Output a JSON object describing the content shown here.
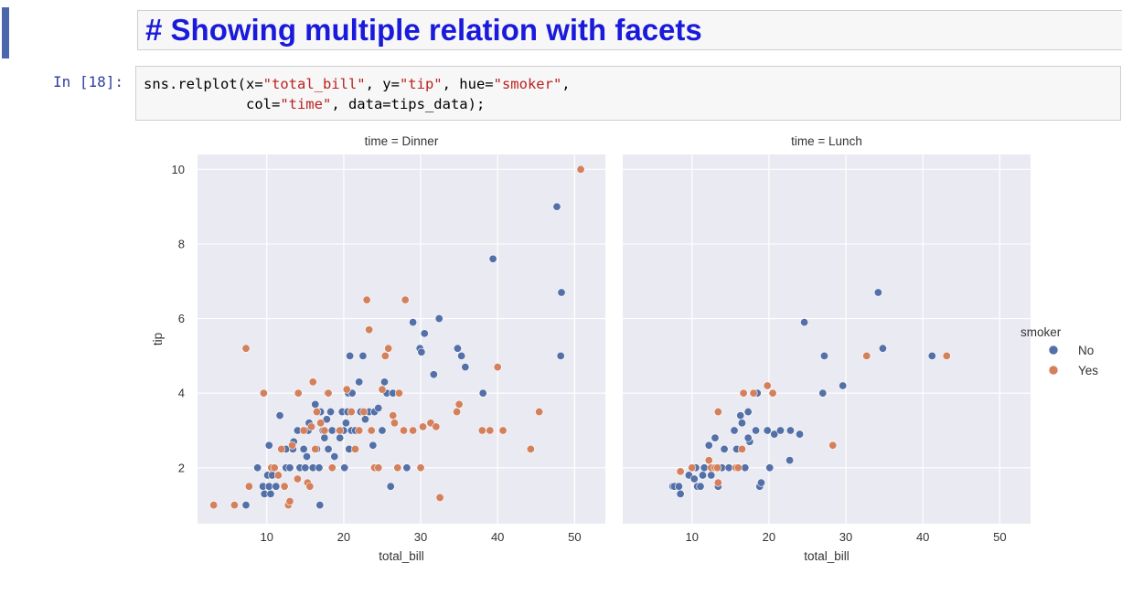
{
  "markdown": {
    "title": "# Showing multiple relation with facets"
  },
  "cell": {
    "prompt": "In [18]:",
    "code": {
      "l1a": "sns.relplot(x=",
      "s1": "\"total_bill\"",
      "l1b": ", y=",
      "s2": "\"tip\"",
      "l1c": ", hue=",
      "s3": "\"smoker\"",
      "l1d": ",",
      "l2a": "            col=",
      "s4": "\"time\"",
      "l2b": ", data=tips_data);"
    }
  },
  "chart_data": {
    "type": "scatter",
    "xlabel": "total_bill",
    "ylabel": "tip",
    "xlim": [
      1,
      54
    ],
    "ylim": [
      0.5,
      10.4
    ],
    "xticks": [
      10,
      20,
      30,
      40,
      50
    ],
    "yticks": [
      2,
      4,
      6,
      8,
      10
    ],
    "grid": true,
    "legend": {
      "title": "smoker",
      "placement": "right",
      "entries": [
        {
          "label": "No",
          "color": "#5470a8"
        },
        {
          "label": "Yes",
          "color": "#d4805c"
        }
      ]
    },
    "facets": [
      {
        "title": "time = Dinner",
        "series": [
          {
            "name": "No",
            "color": "#5470a8",
            "points": [
              [
                7.3,
                1.0
              ],
              [
                8.8,
                2.0
              ],
              [
                9.5,
                1.5
              ],
              [
                9.7,
                1.3
              ],
              [
                10.1,
                1.8
              ],
              [
                10.3,
                2.6
              ],
              [
                10.3,
                1.5
              ],
              [
                10.5,
                1.3
              ],
              [
                10.7,
                1.8
              ],
              [
                11.2,
                1.5
              ],
              [
                11.7,
                3.4
              ],
              [
                12.5,
                2.5
              ],
              [
                12.5,
                2.0
              ],
              [
                13.0,
                2.0
              ],
              [
                13.4,
                2.5
              ],
              [
                13.5,
                2.7
              ],
              [
                14.0,
                3.0
              ],
              [
                14.3,
                2.0
              ],
              [
                14.8,
                2.5
              ],
              [
                15.0,
                2.0
              ],
              [
                15.2,
                2.3
              ],
              [
                15.4,
                3.0
              ],
              [
                15.5,
                3.2
              ],
              [
                16.0,
                2.0
              ],
              [
                16.3,
                3.7
              ],
              [
                16.5,
                2.5
              ],
              [
                16.8,
                2.0
              ],
              [
                16.9,
                1.0
              ],
              [
                17.0,
                3.5
              ],
              [
                17.3,
                3.0
              ],
              [
                17.5,
                2.8
              ],
              [
                17.8,
                3.3
              ],
              [
                17.9,
                4.0
              ],
              [
                18.0,
                2.5
              ],
              [
                18.3,
                3.5
              ],
              [
                18.5,
                3.0
              ],
              [
                18.8,
                2.3
              ],
              [
                19.4,
                3.0
              ],
              [
                19.5,
                2.8
              ],
              [
                19.8,
                3.5
              ],
              [
                20.0,
                3.0
              ],
              [
                20.1,
                2.0
              ],
              [
                20.3,
                3.2
              ],
              [
                20.5,
                3.5
              ],
              [
                20.6,
                4.0
              ],
              [
                20.7,
                2.5
              ],
              [
                20.8,
                5.0
              ],
              [
                21.0,
                3.0
              ],
              [
                21.1,
                4.0
              ],
              [
                21.5,
                3.0
              ],
              [
                22.0,
                4.3
              ],
              [
                22.2,
                3.5
              ],
              [
                22.5,
                5.0
              ],
              [
                22.8,
                3.3
              ],
              [
                23.3,
                3.5
              ],
              [
                23.8,
                2.6
              ],
              [
                24.0,
                3.5
              ],
              [
                24.3,
                2.0
              ],
              [
                24.5,
                3.6
              ],
              [
                25.0,
                3.0
              ],
              [
                25.3,
                4.3
              ],
              [
                25.6,
                4.0
              ],
              [
                26.1,
                1.5
              ],
              [
                26.4,
                4.0
              ],
              [
                28.2,
                2.0
              ],
              [
                29.0,
                5.9
              ],
              [
                29.9,
                5.2
              ],
              [
                30.1,
                5.1
              ],
              [
                30.5,
                5.6
              ],
              [
                31.7,
                4.5
              ],
              [
                32.4,
                6.0
              ],
              [
                34.8,
                5.2
              ],
              [
                35.3,
                5.0
              ],
              [
                35.8,
                4.7
              ],
              [
                38.1,
                4.0
              ],
              [
                39.4,
                7.6
              ],
              [
                47.7,
                9.0
              ],
              [
                48.2,
                5.0
              ],
              [
                48.3,
                6.7
              ]
            ]
          },
          {
            "name": "Yes",
            "color": "#d4805c",
            "points": [
              [
                3.1,
                1.0
              ],
              [
                5.8,
                1.0
              ],
              [
                7.3,
                5.2
              ],
              [
                7.7,
                1.5
              ],
              [
                9.6,
                4.0
              ],
              [
                10.6,
                2.0
              ],
              [
                11.0,
                2.0
              ],
              [
                11.5,
                1.8
              ],
              [
                11.9,
                2.5
              ],
              [
                12.3,
                1.5
              ],
              [
                12.8,
                1.0
              ],
              [
                13.0,
                1.1
              ],
              [
                13.3,
                2.6
              ],
              [
                14.0,
                1.7
              ],
              [
                14.1,
                4.0
              ],
              [
                14.8,
                3.0
              ],
              [
                15.3,
                1.6
              ],
              [
                15.6,
                1.5
              ],
              [
                15.8,
                3.1
              ],
              [
                16.0,
                4.3
              ],
              [
                16.3,
                2.5
              ],
              [
                16.5,
                3.5
              ],
              [
                17.0,
                3.2
              ],
              [
                17.5,
                3.0
              ],
              [
                18.0,
                4.0
              ],
              [
                18.5,
                2.0
              ],
              [
                19.5,
                3.0
              ],
              [
                20.4,
                4.1
              ],
              [
                21.0,
                3.5
              ],
              [
                21.5,
                2.5
              ],
              [
                22.0,
                3.0
              ],
              [
                22.6,
                3.5
              ],
              [
                23.0,
                6.5
              ],
              [
                23.3,
                5.7
              ],
              [
                23.6,
                3.0
              ],
              [
                24.0,
                2.0
              ],
              [
                24.5,
                2.0
              ],
              [
                25.0,
                4.1
              ],
              [
                25.4,
                5.0
              ],
              [
                25.8,
                5.2
              ],
              [
                26.4,
                3.4
              ],
              [
                26.6,
                3.2
              ],
              [
                27.0,
                2.0
              ],
              [
                27.2,
                4.0
              ],
              [
                27.8,
                3.0
              ],
              [
                28.0,
                6.5
              ],
              [
                29.0,
                3.0
              ],
              [
                30.0,
                2.0
              ],
              [
                30.3,
                3.1
              ],
              [
                31.3,
                3.2
              ],
              [
                32.0,
                3.1
              ],
              [
                32.5,
                1.2
              ],
              [
                34.7,
                3.5
              ],
              [
                35.0,
                3.7
              ],
              [
                38.0,
                3.0
              ],
              [
                39.0,
                3.0
              ],
              [
                40.0,
                4.7
              ],
              [
                40.7,
                3.0
              ],
              [
                44.3,
                2.5
              ],
              [
                45.4,
                3.5
              ],
              [
                50.8,
                10.0
              ]
            ]
          }
        ]
      },
      {
        "title": "time = Lunch",
        "series": [
          {
            "name": "No",
            "color": "#5470a8",
            "points": [
              [
                7.5,
                1.5
              ],
              [
                7.7,
                1.5
              ],
              [
                8.3,
                1.5
              ],
              [
                8.5,
                1.3
              ],
              [
                9.6,
                1.8
              ],
              [
                10.3,
                1.7
              ],
              [
                10.5,
                2.0
              ],
              [
                10.7,
                1.5
              ],
              [
                11.1,
                1.5
              ],
              [
                11.4,
                1.8
              ],
              [
                11.6,
                2.0
              ],
              [
                12.2,
                2.6
              ],
              [
                12.5,
                1.8
              ],
              [
                12.7,
                2.0
              ],
              [
                13.0,
                2.8
              ],
              [
                13.4,
                1.5
              ],
              [
                13.9,
                2.0
              ],
              [
                14.2,
                2.5
              ],
              [
                14.8,
                2.0
              ],
              [
                15.5,
                3.0
              ],
              [
                15.8,
                2.5
              ],
              [
                16.3,
                3.4
              ],
              [
                16.5,
                3.2
              ],
              [
                16.9,
                2.0
              ],
              [
                17.3,
                3.5
              ],
              [
                17.5,
                2.7
              ],
              [
                18.3,
                3.0
              ],
              [
                18.8,
                1.5
              ],
              [
                18.5,
                4.0
              ],
              [
                19.0,
                1.6
              ],
              [
                19.8,
                3.0
              ],
              [
                20.1,
                2.0
              ],
              [
                20.7,
                2.9
              ],
              [
                21.5,
                3.0
              ],
              [
                22.7,
                2.2
              ],
              [
                22.8,
                3.0
              ],
              [
                24.0,
                2.9
              ],
              [
                24.6,
                5.9
              ],
              [
                27.0,
                4.0
              ],
              [
                27.2,
                5.0
              ],
              [
                29.6,
                4.2
              ],
              [
                34.2,
                6.7
              ],
              [
                34.8,
                5.2
              ],
              [
                41.2,
                5.0
              ],
              [
                17.3,
                2.8
              ]
            ]
          },
          {
            "name": "Yes",
            "color": "#d4805c",
            "points": [
              [
                8.5,
                1.9
              ],
              [
                10.0,
                2.0
              ],
              [
                12.2,
                2.2
              ],
              [
                12.5,
                2.0
              ],
              [
                13.0,
                2.0
              ],
              [
                13.3,
                2.0
              ],
              [
                13.4,
                1.6
              ],
              [
                13.4,
                3.5
              ],
              [
                15.7,
                2.0
              ],
              [
                16.0,
                2.0
              ],
              [
                16.5,
                2.5
              ],
              [
                16.7,
                4.0
              ],
              [
                18.0,
                4.0
              ],
              [
                19.8,
                4.2
              ],
              [
                20.5,
                4.0
              ],
              [
                28.3,
                2.6
              ],
              [
                32.7,
                5.0
              ],
              [
                43.1,
                5.0
              ]
            ]
          }
        ]
      }
    ]
  }
}
